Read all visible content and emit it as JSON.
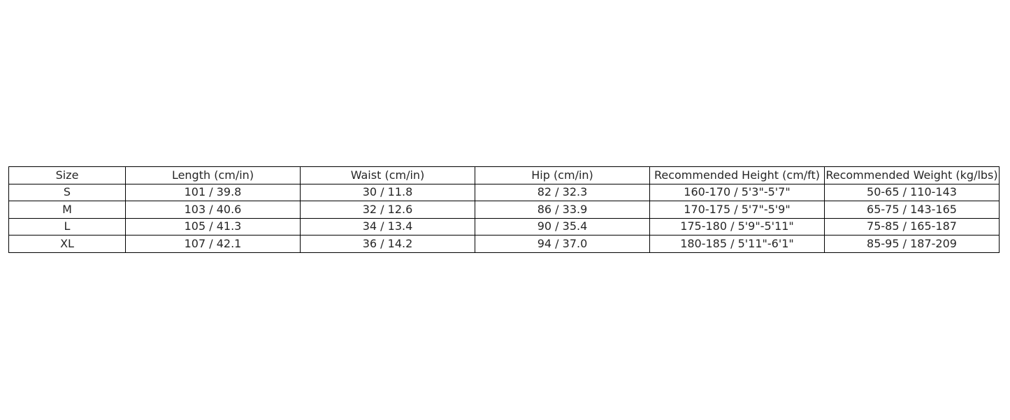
{
  "chart_data": {
    "type": "table",
    "columns": [
      "Size",
      "Length (cm/in)",
      "Waist (cm/in)",
      "Hip (cm/in)",
      "Recommended Height (cm/ft)",
      "Recommended Weight (kg/lbs)"
    ],
    "rows": [
      [
        "S",
        "101 / 39.8",
        "30 / 11.8",
        "82 / 32.3",
        "160-170 / 5'3\"-5'7\"",
        "50-65 / 110-143"
      ],
      [
        "M",
        "103 / 40.6",
        "32 / 12.6",
        "86 / 33.9",
        "170-175 / 5'7\"-5'9\"",
        "65-75 / 143-165"
      ],
      [
        "L",
        "105 / 41.3",
        "34 / 13.4",
        "90 / 35.4",
        "175-180 / 5'9\"-5'11\"",
        "75-85 / 165-187"
      ],
      [
        "XL",
        "107 / 42.1",
        "36 / 14.2",
        "94 / 37.0",
        "180-185 / 5'11\"-6'1\"",
        "85-95 / 187-209"
      ]
    ]
  }
}
